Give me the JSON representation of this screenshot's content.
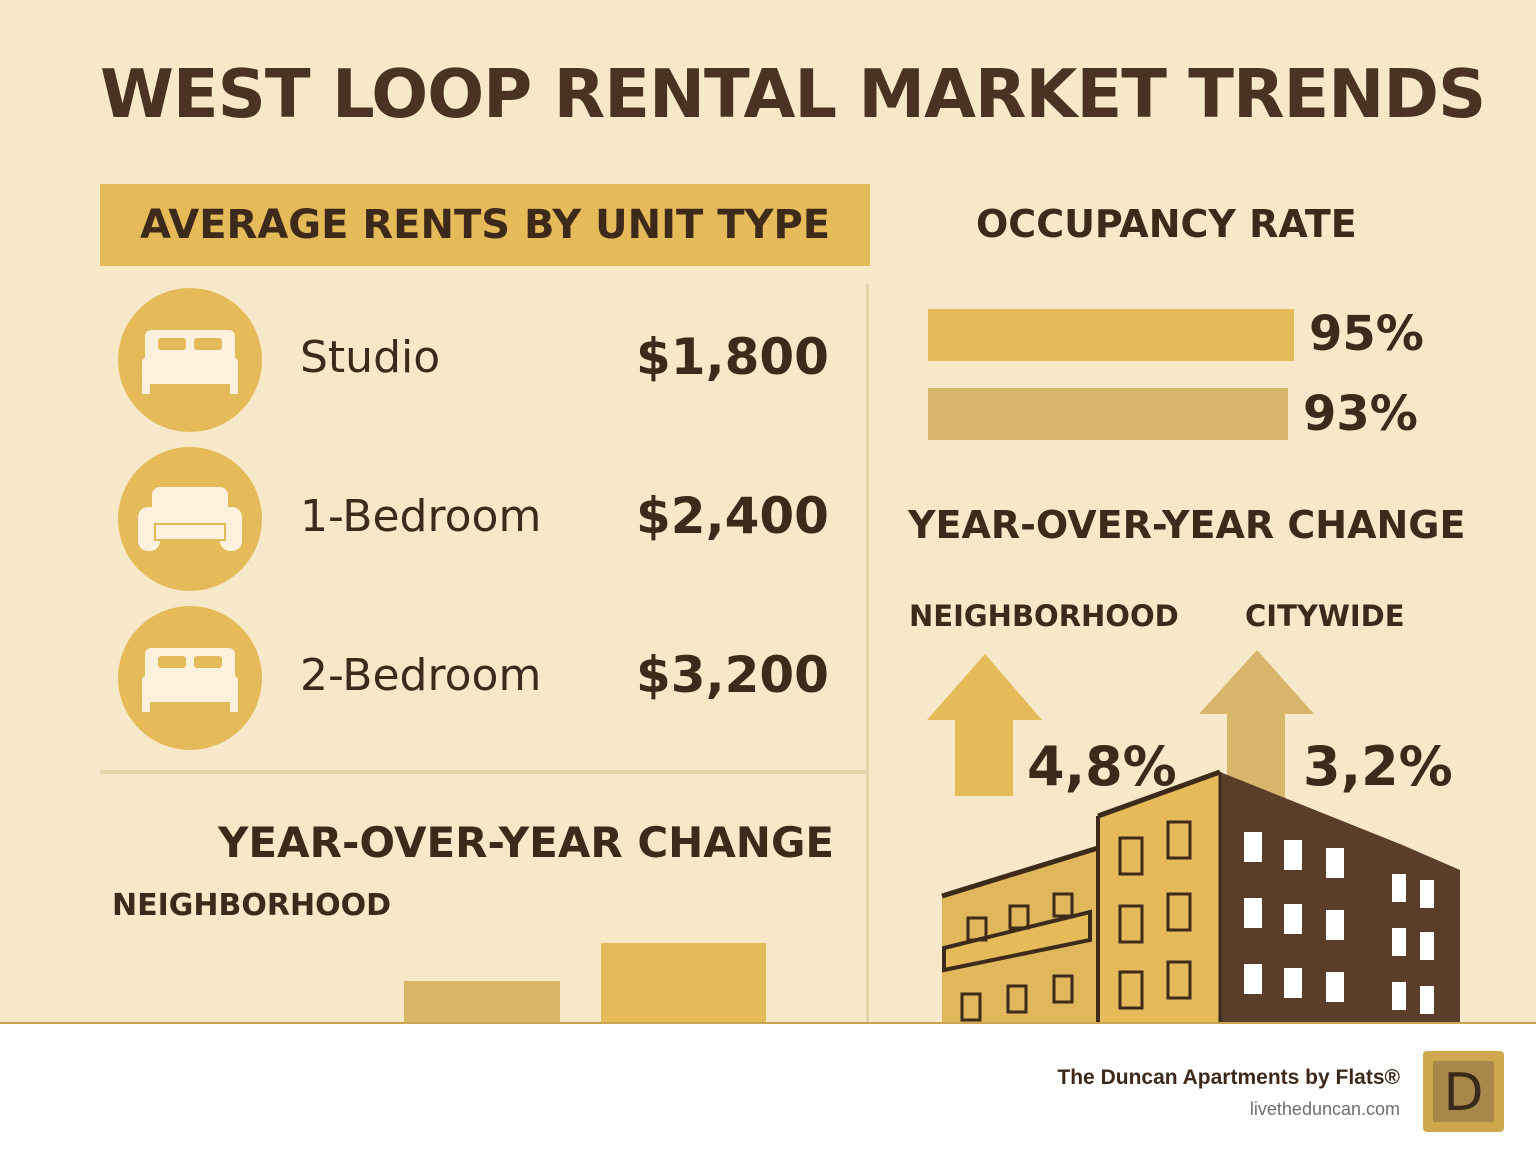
{
  "title": "WEST LOOP RENTAL MARKET TRENDS",
  "rents": {
    "heading": "AVERAGE RENTS BY UNIT TYPE",
    "units": [
      {
        "icon": "bed-icon",
        "name": "Studio",
        "price": "$1,800"
      },
      {
        "icon": "sofa-icon",
        "name": "1-Bedroom",
        "price": "$2,400"
      },
      {
        "icon": "bed-icon",
        "name": "2-Bedroom",
        "price": "$3,200"
      }
    ]
  },
  "occupancy": {
    "heading": "OCCUPANCY RATE",
    "bars": [
      {
        "value": "95%",
        "color": "#e4bb58"
      },
      {
        "value": "93%",
        "color": "#d7b56a"
      }
    ]
  },
  "yoy_right": {
    "heading": "YEAR-OVER-YEAR CHANGE",
    "neighborhood_label": "NEIGHBORHOOD",
    "citywide_label": "CITYWIDE",
    "neighborhood_value": "4,8%",
    "citywide_value": "3,2%"
  },
  "yoy_left": {
    "heading": "YEAR-OVER-YEAR CHANGE",
    "neighborhood_label": "NEIGHBORHOOD"
  },
  "footer": {
    "name": "The Duncan Apartments by Flats®",
    "url": "livetheduncan.com",
    "logo_letter": "D"
  },
  "colors": {
    "background": "#f6e8c8",
    "accent": "#e4bb58",
    "accent_muted": "#d7b56a",
    "text_dark": "#3e2a1b",
    "building_dark": "#5a3e2a"
  }
}
